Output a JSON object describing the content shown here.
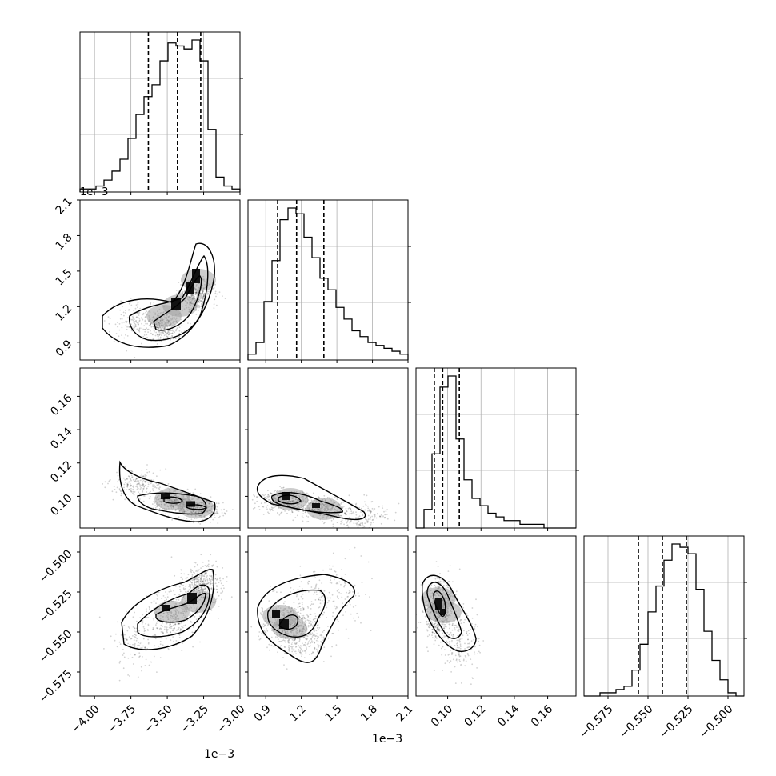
{
  "chart_data": {
    "type": "corner",
    "grid": true,
    "num_params": 4,
    "params": [
      {
        "id": "p0",
        "range": [
          -4.1,
          -3.0
        ],
        "scale_factor": 0.001,
        "offset_text": "1e−3",
        "ticks": [
          -4.0,
          -3.75,
          -3.5,
          -3.25,
          -3.0
        ],
        "tick_labels": [
          "−4.00",
          "−3.75",
          "−3.50",
          "−3.25",
          "−3.00"
        ],
        "quantiles": [
          -3.63,
          -3.43,
          -3.27
        ]
      },
      {
        "id": "p1",
        "range": [
          0.75,
          2.1
        ],
        "scale_factor": 0.001,
        "offset_text": "1e−3",
        "ticks": [
          0.9,
          1.2,
          1.5,
          1.8,
          2.1
        ],
        "tick_labels": [
          "0.9",
          "1.2",
          "1.5",
          "1.8",
          "2.1"
        ],
        "quantiles": [
          1.0,
          1.16,
          1.39
        ]
      },
      {
        "id": "p2",
        "range": [
          0.081,
          0.177
        ],
        "ticks": [
          0.1,
          0.12,
          0.14,
          0.16
        ],
        "tick_labels": [
          "0.10",
          "0.12",
          "0.14",
          "0.16"
        ],
        "quantiles": [
          0.092,
          0.097,
          0.107
        ]
      },
      {
        "id": "p3",
        "range": [
          -0.59,
          -0.49
        ],
        "ticks": [
          -0.575,
          -0.55,
          -0.525,
          -0.5
        ],
        "tick_labels": [
          "−0.575",
          "−0.550",
          "−0.525",
          "−0.500"
        ],
        "quantiles": [
          -0.556,
          -0.541,
          -0.526
        ]
      }
    ],
    "histograms": [
      [
        1,
        1,
        2,
        4,
        7,
        11,
        18,
        26,
        32,
        36,
        44,
        50,
        49,
        48,
        51,
        44,
        21,
        5,
        2,
        1
      ],
      [
        2,
        6,
        20,
        34,
        48,
        52,
        50,
        42,
        35,
        28,
        24,
        18,
        14,
        10,
        8,
        6,
        5,
        4,
        3,
        2
      ],
      [
        0,
        5,
        20,
        38,
        41,
        24,
        13,
        8,
        6,
        4,
        3,
        2,
        2,
        1,
        1,
        1,
        0,
        0,
        0,
        0
      ],
      [
        0,
        0,
        1,
        1,
        2,
        3,
        8,
        16,
        26,
        34,
        42,
        47,
        46,
        44,
        33,
        20,
        11,
        5,
        1,
        0
      ]
    ]
  }
}
